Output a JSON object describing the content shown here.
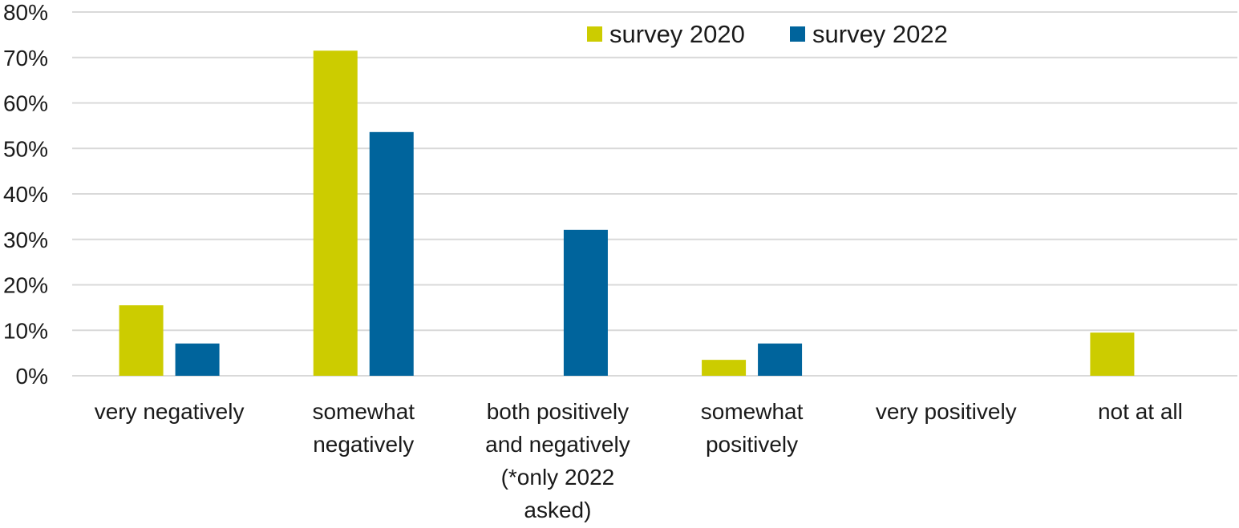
{
  "chart_data": {
    "type": "bar",
    "categories": [
      [
        "very negatively"
      ],
      [
        "somewhat",
        "negatively"
      ],
      [
        "both positively",
        "and negatively",
        "(*only 2022",
        "asked)"
      ],
      [
        "somewhat",
        "positively"
      ],
      [
        "very positively"
      ],
      [
        "not at all"
      ]
    ],
    "series": [
      {
        "name": "survey 2020",
        "color": "#cccc00",
        "values": [
          15.5,
          71.5,
          null,
          3.5,
          0,
          9.5
        ]
      },
      {
        "name": "survey 2022",
        "color": "#00649c",
        "values": [
          7.1,
          53.6,
          32.1,
          7.1,
          0,
          0
        ]
      }
    ],
    "ylim": [
      0,
      80
    ],
    "yticks": [
      "0%",
      "10%",
      "20%",
      "30%",
      "40%",
      "50%",
      "60%",
      "70%",
      "80%"
    ],
    "grid": true,
    "gridColor": "#d9d9d9",
    "legend": "top-center"
  }
}
